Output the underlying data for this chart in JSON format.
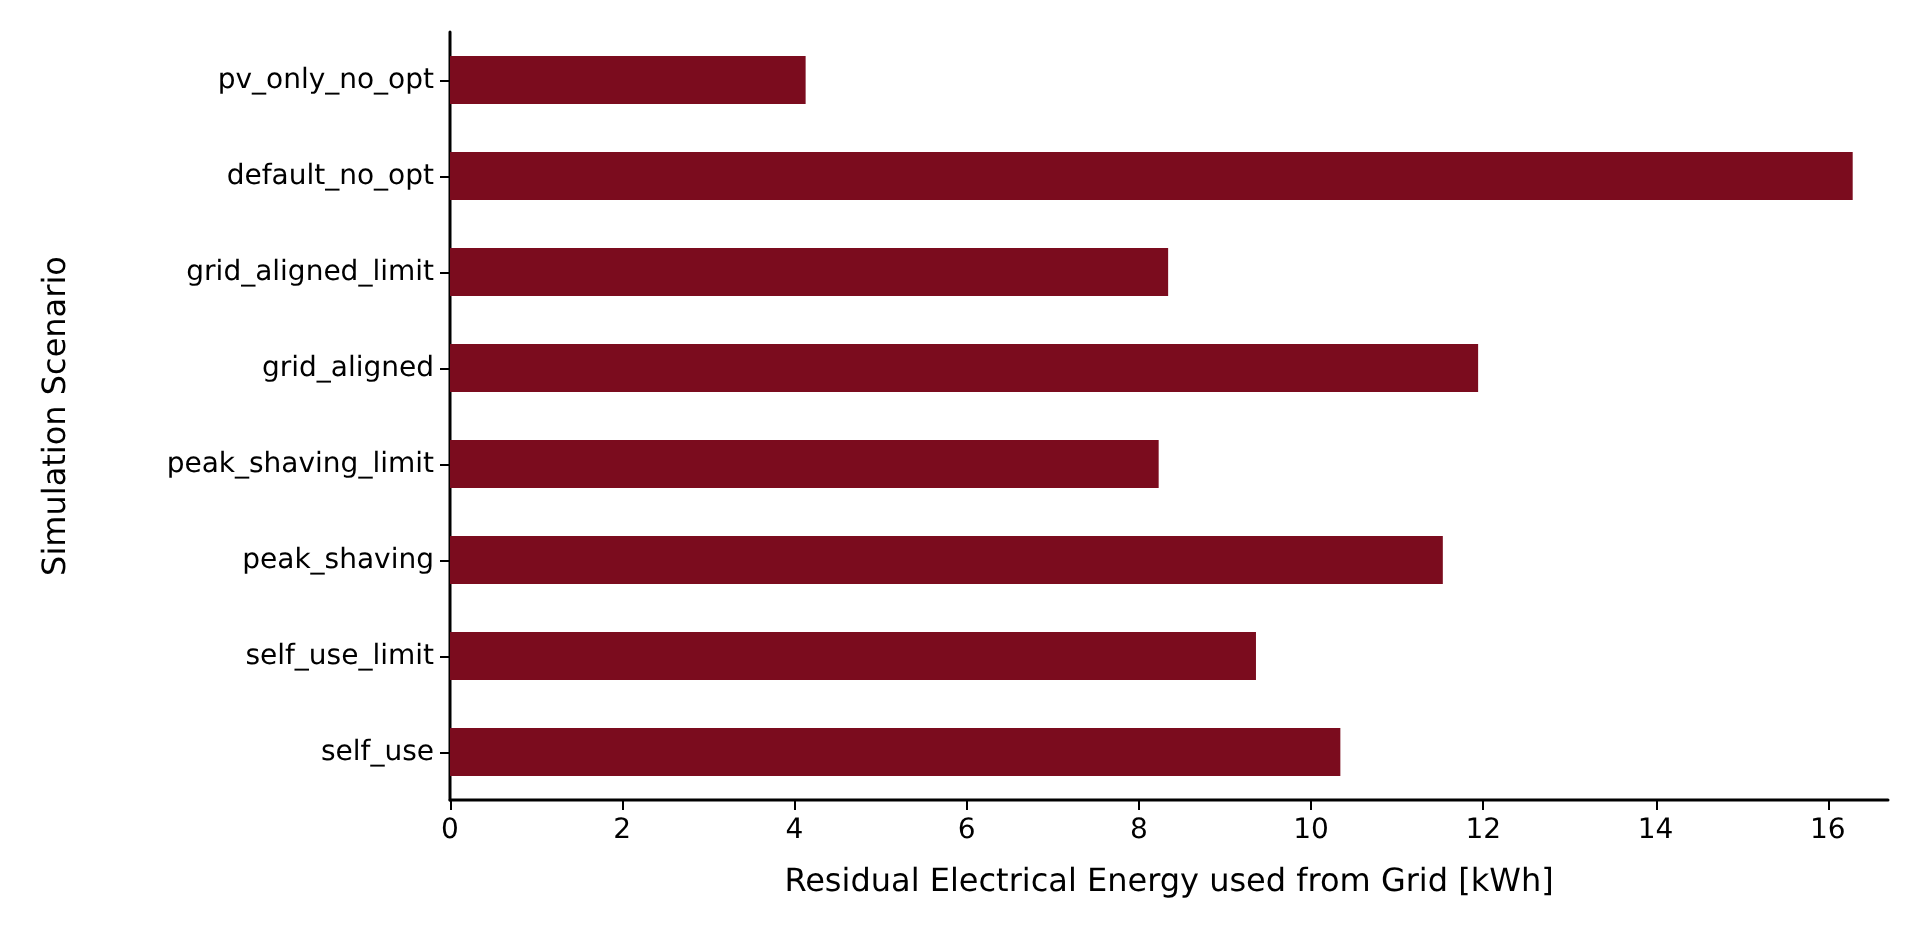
{
  "chart_data": {
    "type": "bar",
    "orientation": "horizontal",
    "xlabel": "Residual Electrical Energy used from Grid [kWh]",
    "ylabel": "Simulation Scenario",
    "categories": [
      "pv_only_no_opt",
      "default_no_opt",
      "grid_aligned_limit",
      "grid_aligned",
      "peak_shaving_limit",
      "peak_shaving",
      "self_use_limit",
      "self_use"
    ],
    "values": [
      4.13,
      16.29,
      8.34,
      11.94,
      8.23,
      11.53,
      9.36,
      10.34
    ],
    "color": "#7b0c1e",
    "xlim": [
      0,
      16.7
    ],
    "xticks": [
      0,
      2,
      4,
      6,
      8,
      10,
      12,
      14,
      16
    ],
    "grid": false
  }
}
